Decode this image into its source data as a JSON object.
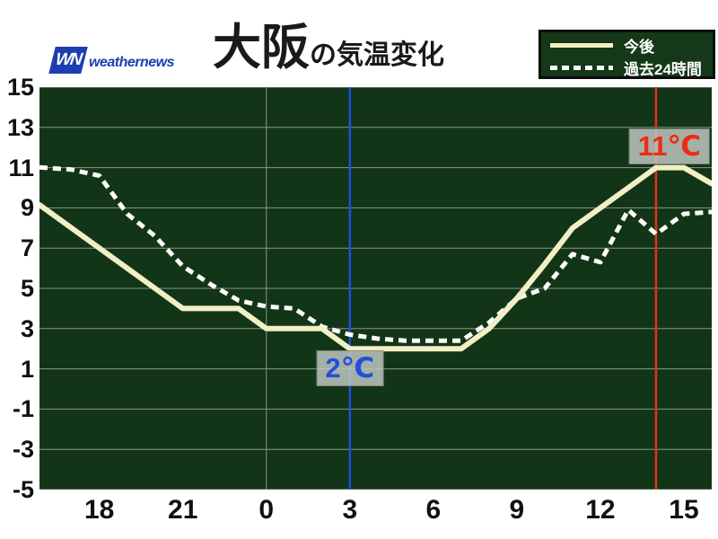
{
  "header": {
    "logo_wn": "WN",
    "logo_brand": "weathernews",
    "title_city": "大阪",
    "title_suffix": "の気温変化"
  },
  "legend": {
    "items": [
      {
        "label": "今後",
        "style": "solid",
        "color": "#f3efc5"
      },
      {
        "label": "過去24時間",
        "style": "dashed",
        "color": "#ffffff"
      }
    ]
  },
  "chart_data": {
    "type": "line",
    "title": "大阪の気温変化",
    "background_color": "#123517",
    "grid_color": "#8f948d",
    "x_hours": [
      16,
      17,
      18,
      19,
      20,
      21,
      22,
      23,
      24,
      25,
      26,
      27,
      28,
      29,
      30,
      31,
      32,
      33,
      34,
      35,
      36,
      37,
      38,
      39,
      40
    ],
    "series": [
      {
        "name": "今後",
        "color": "#f3efc5",
        "style": "solid",
        "width": 6,
        "values": [
          9,
          8,
          7,
          6,
          5,
          4,
          4,
          4,
          3,
          3,
          3,
          2,
          2,
          2,
          2,
          2,
          3,
          4.5,
          6.2,
          8,
          9,
          10,
          11,
          11,
          10.2
        ]
      },
      {
        "name": "過去24時間",
        "color": "#ffffff",
        "style": "dashed",
        "width": 5,
        "values": [
          11,
          10.9,
          10.6,
          8.7,
          7.6,
          6.1,
          5.2,
          4.4,
          4.1,
          4,
          3.1,
          2.7,
          2.5,
          2.4,
          2.4,
          2.4,
          3.3,
          4.5,
          5,
          6.7,
          6.3,
          8.9,
          7.7,
          8.7,
          8.8
        ]
      }
    ],
    "xlim_hours": [
      15.85,
      40.0
    ],
    "ylim": [
      -5,
      15
    ],
    "y_ticks": [
      15,
      13,
      11,
      9,
      7,
      5,
      3,
      1,
      -1,
      -3,
      -5
    ],
    "x_ticks": [
      {
        "hour": 18,
        "label": "18"
      },
      {
        "hour": 21,
        "label": "21"
      },
      {
        "hour": 24,
        "label": "0"
      },
      {
        "hour": 27,
        "label": "3"
      },
      {
        "hour": 30,
        "label": "6"
      },
      {
        "hour": 33,
        "label": "9"
      },
      {
        "hour": 36,
        "label": "12"
      },
      {
        "hour": 39,
        "label": "15"
      }
    ],
    "grid_vertical_hours": [
      24
    ],
    "markers": [
      {
        "label": "2℃",
        "hour": 27,
        "value": 2,
        "text_color": "#2250dc",
        "line_color": "#1d4fdc",
        "box_center_temp": 1,
        "align": "center"
      },
      {
        "label": "11℃",
        "hour": 38,
        "value": 11,
        "text_color": "#f02a14",
        "line_color": "#e03318",
        "box_center_temp": 12,
        "align": "right"
      }
    ]
  }
}
